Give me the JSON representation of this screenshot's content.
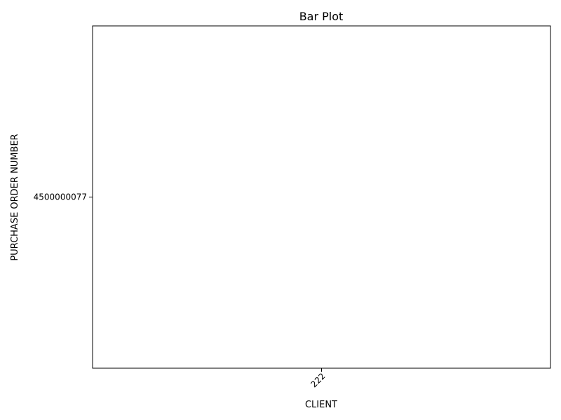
{
  "chart_data": {
    "type": "bar",
    "title": "Bar Plot",
    "xlabel": "CLIENT",
    "ylabel": "PURCHASE ORDER NUMBER",
    "categories": [
      "222"
    ],
    "values": [
      4500000077
    ],
    "ylim": [
      4499999999,
      4500000155
    ],
    "yticks": [
      "4500000077"
    ],
    "bar_color": "#1f77b4",
    "grid": false,
    "legend": "none"
  }
}
